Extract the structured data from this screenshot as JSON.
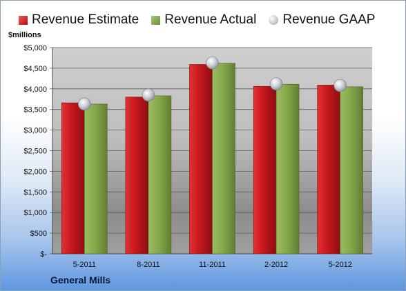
{
  "legend": {
    "estimate": "Revenue Estimate",
    "actual": "Revenue Actual",
    "gaap": "Revenue GAAP"
  },
  "unit_label": "$millions",
  "company_label": "General Mills",
  "colors": {
    "estimate": "#c8191e",
    "actual": "#8aae4e",
    "gaap": "#c0c3c9"
  },
  "chart_data": {
    "type": "bar",
    "categories": [
      "5-2011",
      "8-2011",
      "11-2011",
      "2-2012",
      "5-2012"
    ],
    "series": [
      {
        "name": "Revenue Estimate",
        "values": [
          3660,
          3800,
          4590,
          4060,
          4090
        ]
      },
      {
        "name": "Revenue Actual",
        "values": [
          3630,
          3830,
          4620,
          4110,
          4050
        ]
      },
      {
        "name": "Revenue GAAP",
        "values": [
          3630,
          3850,
          4630,
          4120,
          4080
        ]
      }
    ],
    "yticks": [
      "$-",
      "$500",
      "$1,000",
      "$1,500",
      "$2,000",
      "$2,500",
      "$3,000",
      "$3,500",
      "$4,000",
      "$4,500",
      "$5,000"
    ],
    "ylabel": "$millions",
    "ylim": [
      0,
      5000
    ],
    "grid": true,
    "legend_position": "top"
  }
}
